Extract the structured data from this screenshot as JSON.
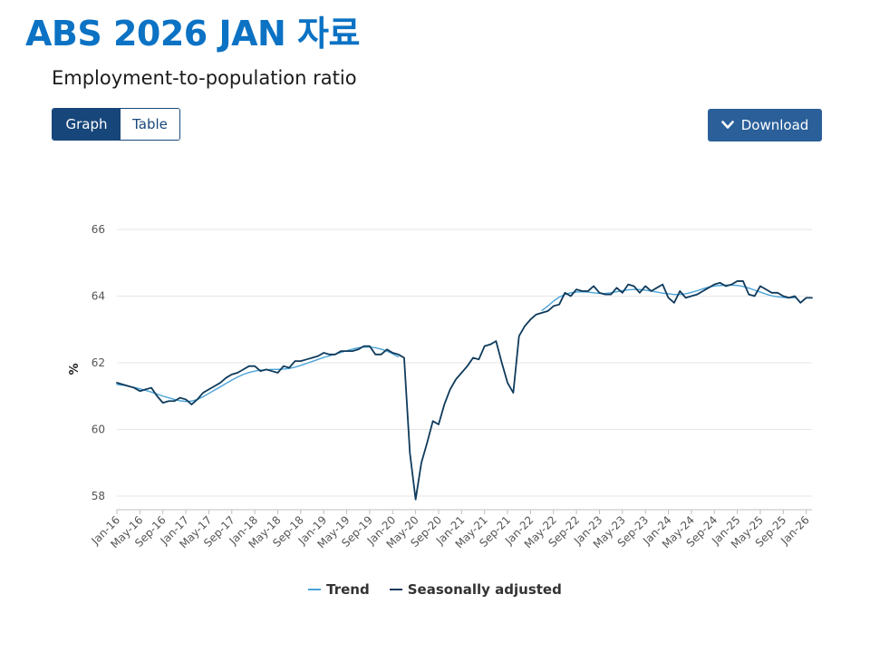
{
  "slide_title": "ABS 2026 JAN 자료",
  "controls": {
    "graph_label": "Graph",
    "table_label": "Table",
    "download_label": "Download"
  },
  "colors": {
    "title": "#0b72c4",
    "trend": "#4aa3d8",
    "seasonally_adjusted": "#0f3b5c",
    "grid": "#e6e6e6",
    "button_dark": "#17467a"
  },
  "chart_data": {
    "type": "line",
    "title": "Employment-to-population ratio",
    "xlabel": "",
    "ylabel": "%",
    "ylim": [
      57.5,
      66
    ],
    "yticks": [
      58,
      60,
      62,
      64,
      66
    ],
    "grid": true,
    "legend_position": "bottom-center",
    "start_month": "2016-01",
    "x_tick_labels": [
      "Jan-16",
      "May-16",
      "Sep-16",
      "Jan-17",
      "May-17",
      "Sep-17",
      "Jan-18",
      "May-18",
      "Sep-18",
      "Jan-19",
      "May-19",
      "Sep-19",
      "Jan-20",
      "May-20",
      "Sep-20",
      "Jan-21",
      "May-21",
      "Sep-21",
      "Jan-22",
      "May-22",
      "Sep-22",
      "Jan-23",
      "May-23",
      "Sep-23",
      "Jan-24",
      "May-24",
      "Sep-24",
      "Jan-25",
      "May-25",
      "Sep-25",
      "Jan-26"
    ],
    "series": [
      {
        "name": "Trend",
        "values": [
          61.35,
          61.33,
          61.3,
          61.26,
          61.22,
          61.17,
          61.12,
          61.06,
          61.0,
          60.95,
          60.9,
          60.86,
          60.84,
          60.85,
          60.9,
          60.98,
          61.08,
          61.18,
          61.28,
          61.38,
          61.48,
          61.57,
          61.65,
          61.71,
          61.75,
          61.78,
          61.79,
          61.8,
          61.8,
          61.81,
          61.83,
          61.87,
          61.92,
          61.98,
          62.04,
          62.1,
          62.16,
          62.21,
          62.26,
          62.31,
          62.36,
          62.41,
          62.45,
          62.47,
          62.47,
          62.45,
          62.41,
          62.35,
          62.27,
          62.18,
          null,
          null,
          null,
          null,
          null,
          null,
          null,
          null,
          null,
          null,
          null,
          null,
          null,
          null,
          null,
          null,
          null,
          null,
          null,
          null,
          null,
          null,
          null,
          null,
          63.57,
          63.7,
          63.85,
          63.97,
          64.05,
          64.1,
          64.12,
          64.13,
          64.12,
          64.1,
          64.08,
          64.08,
          64.1,
          64.13,
          64.16,
          64.19,
          64.2,
          64.2,
          64.18,
          64.15,
          64.12,
          64.09,
          64.07,
          64.05,
          64.05,
          64.07,
          64.11,
          64.16,
          64.22,
          64.27,
          64.3,
          64.32,
          64.33,
          64.33,
          64.32,
          64.29,
          64.24,
          64.18,
          64.12,
          64.06,
          64.01,
          63.98,
          63.96,
          63.95,
          63.95
        ]
      },
      {
        "name": "Seasonally adjusted",
        "values": [
          61.4,
          61.35,
          61.3,
          61.25,
          61.15,
          61.2,
          61.25,
          61.0,
          60.8,
          60.85,
          60.85,
          60.95,
          60.9,
          60.75,
          60.9,
          61.1,
          61.2,
          61.3,
          61.4,
          61.55,
          61.65,
          61.7,
          61.8,
          61.9,
          61.9,
          61.75,
          61.8,
          61.75,
          61.7,
          61.9,
          61.85,
          62.05,
          62.05,
          62.1,
          62.15,
          62.2,
          62.3,
          62.25,
          62.25,
          62.35,
          62.35,
          62.35,
          62.4,
          62.5,
          62.5,
          62.25,
          62.25,
          62.4,
          62.3,
          62.25,
          62.15,
          59.3,
          57.9,
          59.0,
          59.6,
          60.25,
          60.15,
          60.75,
          61.2,
          61.5,
          61.7,
          61.9,
          62.15,
          62.1,
          62.5,
          62.55,
          62.65,
          62.0,
          61.4,
          61.1,
          62.8,
          63.1,
          63.3,
          63.45,
          63.5,
          63.55,
          63.7,
          63.75,
          64.1,
          64.0,
          64.2,
          64.15,
          64.15,
          64.3,
          64.1,
          64.05,
          64.05,
          64.25,
          64.1,
          64.35,
          64.3,
          64.1,
          64.3,
          64.15,
          64.25,
          64.35,
          63.95,
          63.8,
          64.15,
          63.95,
          64.0,
          64.05,
          64.15,
          64.25,
          64.35,
          64.4,
          64.3,
          64.35,
          64.45,
          64.45,
          64.05,
          64.0,
          64.3,
          64.2,
          64.1,
          64.1,
          64.0,
          63.95,
          64.0,
          63.8,
          63.95,
          63.95
        ]
      }
    ]
  }
}
